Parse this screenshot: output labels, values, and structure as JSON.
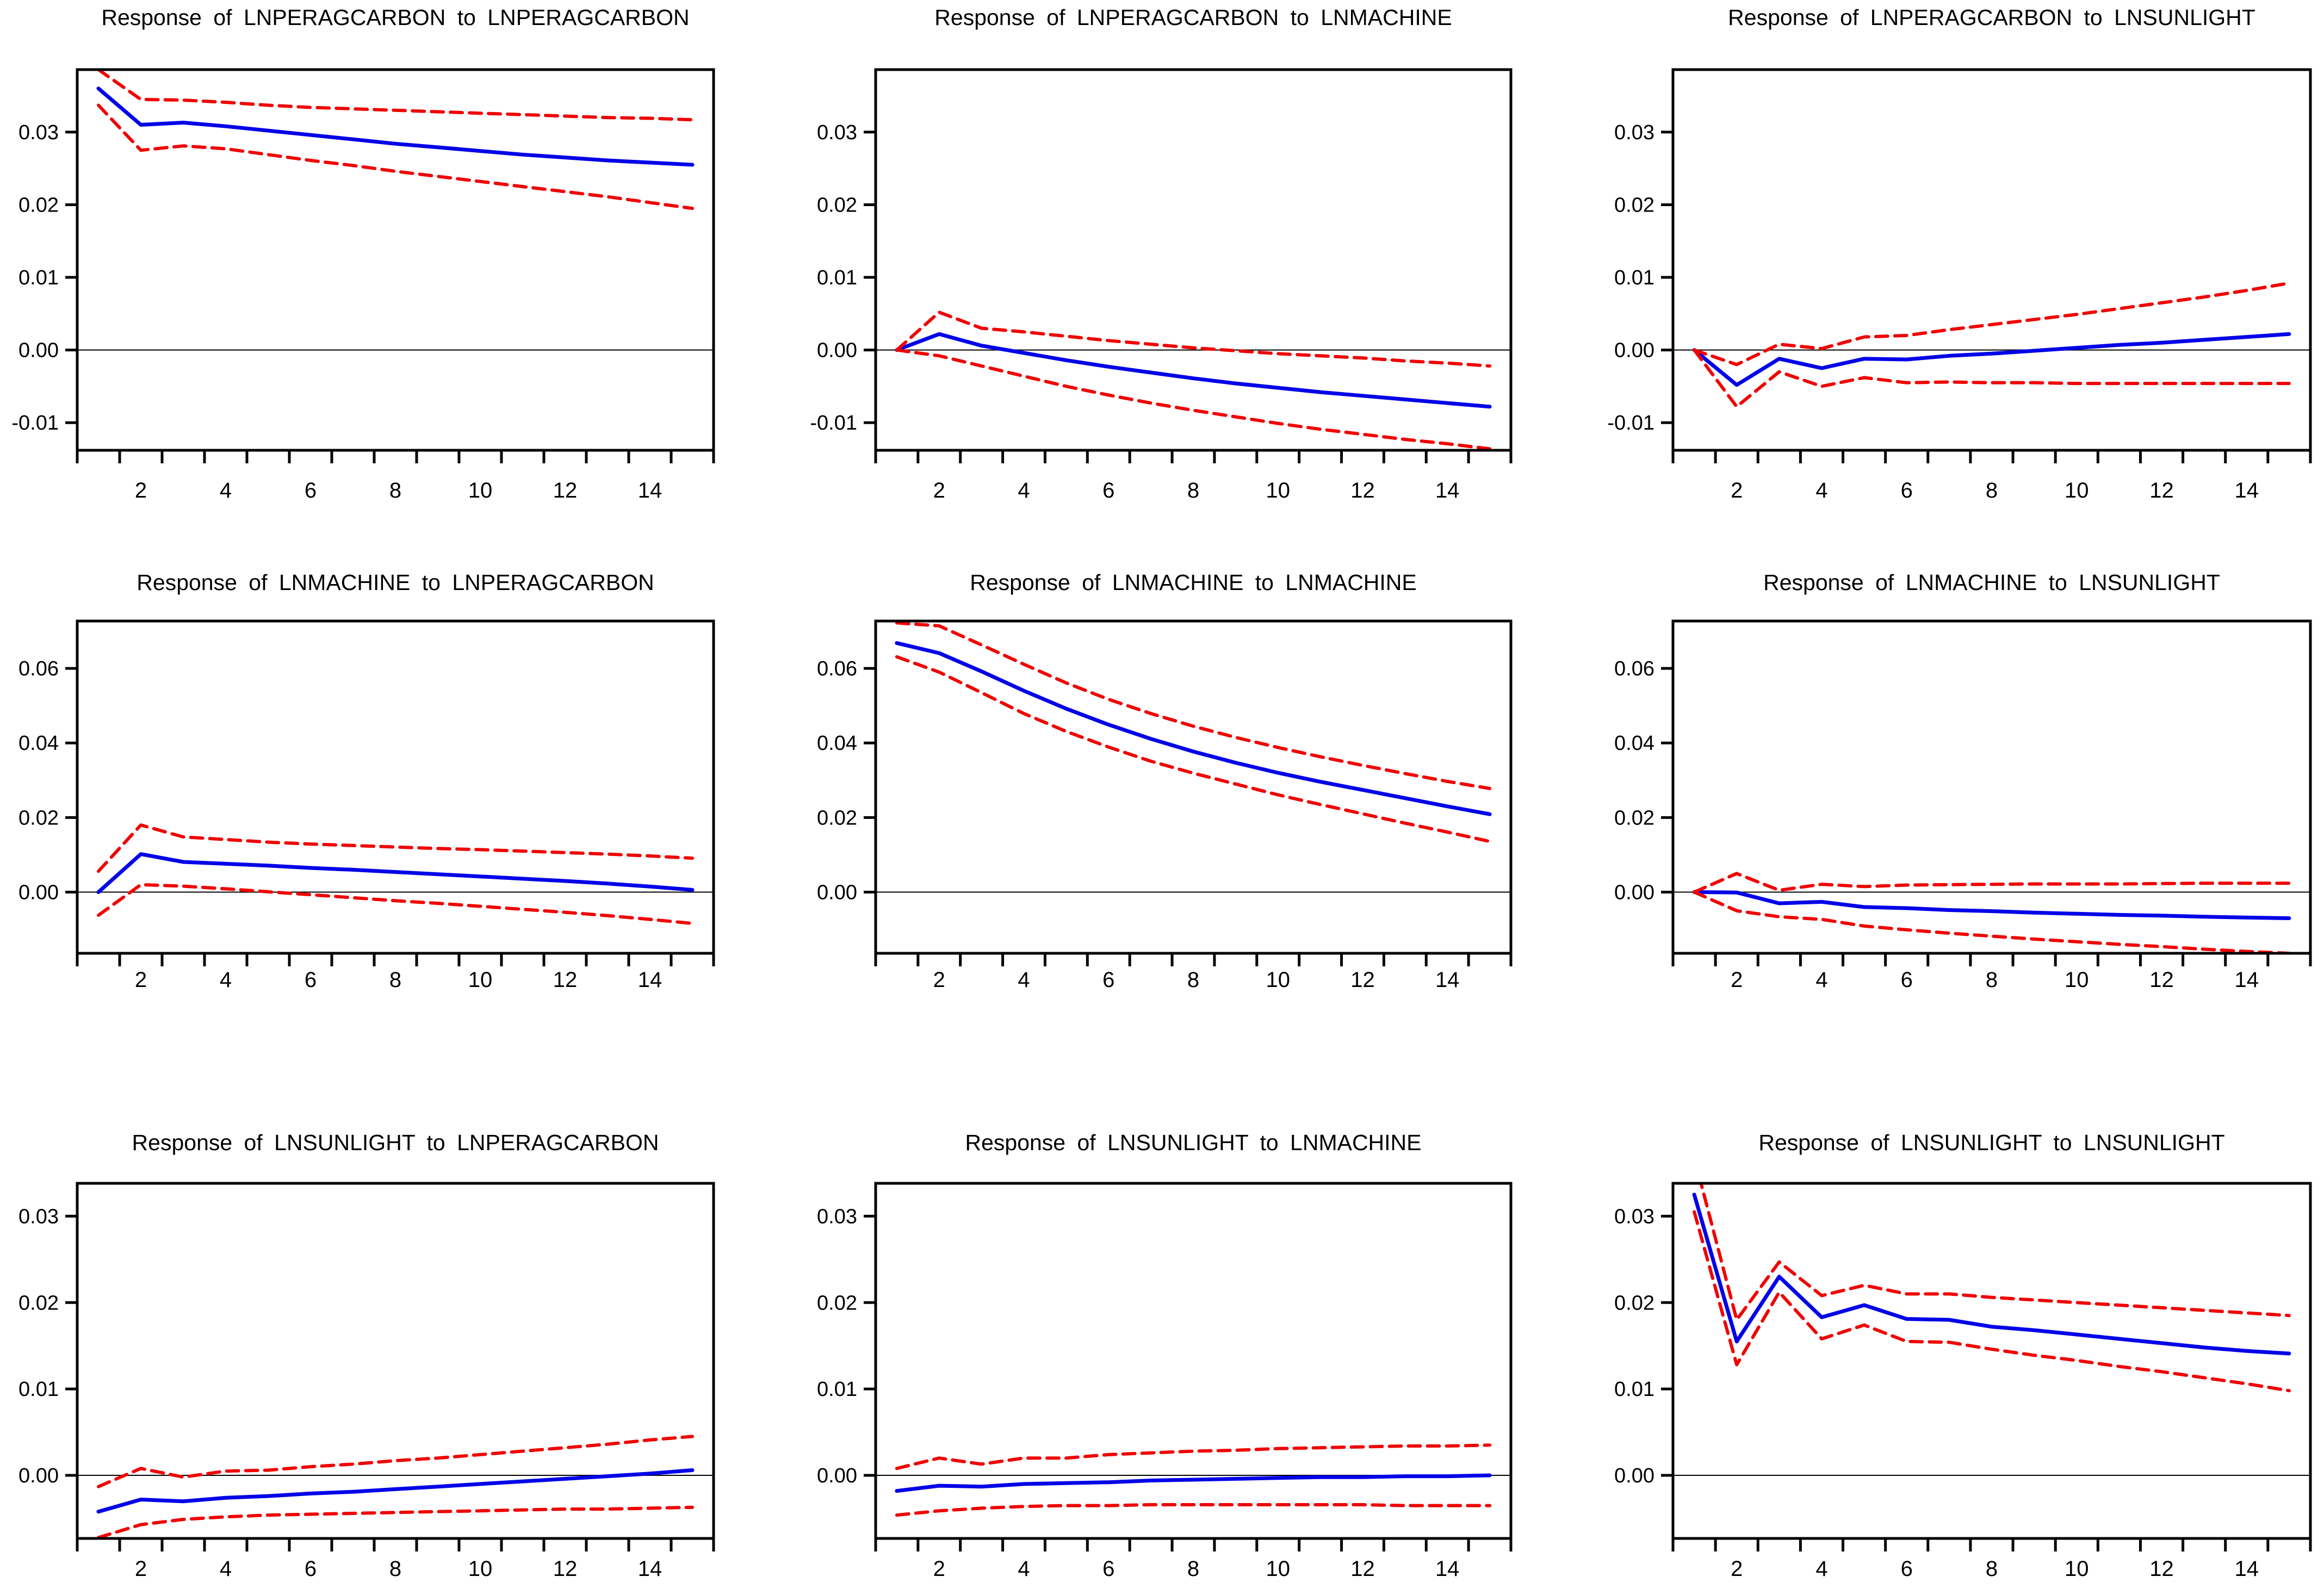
{
  "figure": {
    "kind": "VAR impulse response 3x3 grid",
    "background": "#FFFFFF",
    "rows": 3,
    "cols": 3,
    "colors": {
      "response_line": "#0202E8",
      "confidence_band": "#F00000",
      "frame": "#000000",
      "zero_line": "#000000"
    }
  },
  "chart_data": [
    {
      "type": "line",
      "row": 0,
      "col": 0,
      "title": "Response of LNPERAGCARBON to LNPERAGCARBON",
      "x": [
        1,
        2,
        3,
        4,
        5,
        6,
        7,
        8,
        9,
        10,
        11,
        12,
        13,
        14,
        15
      ],
      "x_tick_labels": [
        "2",
        "4",
        "6",
        "8",
        "10",
        "12",
        "14"
      ],
      "x_tick_positions": [
        2,
        4,
        6,
        8,
        10,
        12,
        14
      ],
      "y_ticks": [
        0.03,
        0.02,
        0.01,
        0.0,
        -0.01
      ],
      "y_tick_labels": [
        "0.03",
        "0.02",
        "0.01",
        "0.00",
        "-0.01"
      ],
      "ylim": [
        -0.0138,
        0.0386
      ],
      "zero_line": true,
      "legend": "none",
      "series": [
        {
          "name": "response",
          "style": "solid",
          "values": [
            0.036,
            0.031,
            0.0313,
            0.0308,
            0.0302,
            0.0296,
            0.029,
            0.0284,
            0.0279,
            0.0274,
            0.0269,
            0.0265,
            0.0261,
            0.0258,
            0.0255
          ]
        },
        {
          "name": "upper-band",
          "style": "dashed",
          "values": [
            0.0386,
            0.0345,
            0.0344,
            0.0341,
            0.0337,
            0.0334,
            0.0332,
            0.033,
            0.0328,
            0.0326,
            0.0324,
            0.0322,
            0.032,
            0.0319,
            0.0317
          ]
        },
        {
          "name": "lower-band",
          "style": "dashed",
          "values": [
            0.0337,
            0.0275,
            0.0281,
            0.0277,
            0.0269,
            0.0261,
            0.0254,
            0.0246,
            0.0239,
            0.0232,
            0.0225,
            0.0218,
            0.0211,
            0.0203,
            0.0195
          ]
        }
      ]
    },
    {
      "type": "line",
      "row": 0,
      "col": 1,
      "title": "Response of LNPERAGCARBON to LNMACHINE",
      "x": [
        1,
        2,
        3,
        4,
        5,
        6,
        7,
        8,
        9,
        10,
        11,
        12,
        13,
        14,
        15
      ],
      "x_tick_labels": [
        "2",
        "4",
        "6",
        "8",
        "10",
        "12",
        "14"
      ],
      "x_tick_positions": [
        2,
        4,
        6,
        8,
        10,
        12,
        14
      ],
      "y_ticks": [
        0.03,
        0.02,
        0.01,
        0.0,
        -0.01
      ],
      "y_tick_labels": [
        "0.03",
        "0.02",
        "0.01",
        "0.00",
        "-0.01"
      ],
      "ylim": [
        -0.0138,
        0.0386
      ],
      "zero_line": true,
      "legend": "none",
      "series": [
        {
          "name": "response",
          "style": "solid",
          "values": [
            0.0,
            0.0022,
            0.0006,
            -0.0004,
            -0.0014,
            -0.0023,
            -0.0031,
            -0.0039,
            -0.0046,
            -0.0052,
            -0.0058,
            -0.0063,
            -0.0068,
            -0.0073,
            -0.0078
          ]
        },
        {
          "name": "upper-band",
          "style": "dashed",
          "values": [
            0.0,
            0.0052,
            0.003,
            0.0025,
            0.0019,
            0.0013,
            0.0008,
            0.0003,
            -0.0001,
            -0.0005,
            -0.0008,
            -0.0011,
            -0.0015,
            -0.0018,
            -0.0022
          ]
        },
        {
          "name": "lower-band",
          "style": "dashed",
          "values": [
            0.0,
            -0.0008,
            -0.0022,
            -0.0036,
            -0.005,
            -0.0062,
            -0.0073,
            -0.0083,
            -0.0092,
            -0.0101,
            -0.0109,
            -0.0116,
            -0.0123,
            -0.0129,
            -0.0136
          ]
        }
      ]
    },
    {
      "type": "line",
      "row": 0,
      "col": 2,
      "title": "Response of LNPERAGCARBON to LNSUNLIGHT",
      "x": [
        1,
        2,
        3,
        4,
        5,
        6,
        7,
        8,
        9,
        10,
        11,
        12,
        13,
        14,
        15
      ],
      "x_tick_labels": [
        "2",
        "4",
        "6",
        "8",
        "10",
        "12",
        "14"
      ],
      "x_tick_positions": [
        2,
        4,
        6,
        8,
        10,
        12,
        14
      ],
      "y_ticks": [
        0.03,
        0.02,
        0.01,
        0.0,
        -0.01
      ],
      "y_tick_labels": [
        "0.03",
        "0.02",
        "0.01",
        "0.00",
        "-0.01"
      ],
      "ylim": [
        -0.0138,
        0.0386
      ],
      "zero_line": true,
      "legend": "none",
      "series": [
        {
          "name": "response",
          "style": "solid",
          "values": [
            0.0,
            -0.0048,
            -0.0012,
            -0.0025,
            -0.0012,
            -0.0013,
            -0.0008,
            -0.0005,
            -0.0001,
            0.0003,
            0.0007,
            0.001,
            0.0014,
            0.0018,
            0.0022
          ]
        },
        {
          "name": "upper-band",
          "style": "dashed",
          "values": [
            0.0,
            -0.002,
            0.0008,
            0.0002,
            0.0018,
            0.002,
            0.0028,
            0.0035,
            0.0042,
            0.0049,
            0.0057,
            0.0065,
            0.0073,
            0.0082,
            0.0092
          ]
        },
        {
          "name": "lower-band",
          "style": "dashed",
          "values": [
            0.0,
            -0.0078,
            -0.003,
            -0.005,
            -0.0038,
            -0.0045,
            -0.0044,
            -0.0045,
            -0.0045,
            -0.0046,
            -0.0046,
            -0.0046,
            -0.0046,
            -0.0046,
            -0.0046
          ]
        }
      ]
    },
    {
      "type": "line",
      "row": 1,
      "col": 0,
      "title": "Response of LNMACHINE to LNPERAGCARBON",
      "x": [
        1,
        2,
        3,
        4,
        5,
        6,
        7,
        8,
        9,
        10,
        11,
        12,
        13,
        14,
        15
      ],
      "x_tick_labels": [
        "2",
        "4",
        "6",
        "8",
        "10",
        "12",
        "14"
      ],
      "x_tick_positions": [
        2,
        4,
        6,
        8,
        10,
        12,
        14
      ],
      "y_ticks": [
        0.06,
        0.04,
        0.02,
        0.0
      ],
      "y_tick_labels": [
        "0.06",
        "0.04",
        "0.02",
        "0.00"
      ],
      "ylim": [
        -0.0164,
        0.0727
      ],
      "zero_line": true,
      "legend": "none",
      "series": [
        {
          "name": "response",
          "style": "solid",
          "values": [
            0.0,
            0.0102,
            0.0081,
            0.0076,
            0.0071,
            0.0065,
            0.006,
            0.0054,
            0.0048,
            0.0042,
            0.0036,
            0.003,
            0.0023,
            0.0015,
            0.0006
          ]
        },
        {
          "name": "upper-band",
          "style": "dashed",
          "values": [
            0.0056,
            0.018,
            0.0148,
            0.0141,
            0.0134,
            0.0129,
            0.0125,
            0.0121,
            0.0117,
            0.0114,
            0.011,
            0.0106,
            0.0102,
            0.0097,
            0.0091
          ]
        },
        {
          "name": "lower-band",
          "style": "dashed",
          "values": [
            -0.0062,
            0.002,
            0.0016,
            0.0009,
            0.0001,
            -0.0007,
            -0.0015,
            -0.0023,
            -0.003,
            -0.0038,
            -0.0046,
            -0.0054,
            -0.0063,
            -0.0073,
            -0.0084
          ]
        }
      ]
    },
    {
      "type": "line",
      "row": 1,
      "col": 1,
      "title": "Response of LNMACHINE to LNMACHINE",
      "x": [
        1,
        2,
        3,
        4,
        5,
        6,
        7,
        8,
        9,
        10,
        11,
        12,
        13,
        14,
        15
      ],
      "x_tick_labels": [
        "2",
        "4",
        "6",
        "8",
        "10",
        "12",
        "14"
      ],
      "x_tick_positions": [
        2,
        4,
        6,
        8,
        10,
        12,
        14
      ],
      "y_ticks": [
        0.06,
        0.04,
        0.02,
        0.0
      ],
      "y_tick_labels": [
        "0.06",
        "0.04",
        "0.02",
        "0.00"
      ],
      "ylim": [
        -0.0164,
        0.0727
      ],
      "zero_line": true,
      "legend": "none",
      "series": [
        {
          "name": "response",
          "style": "solid",
          "values": [
            0.0668,
            0.0641,
            0.0592,
            0.054,
            0.0492,
            0.0449,
            0.0411,
            0.0377,
            0.0347,
            0.032,
            0.0296,
            0.0274,
            0.0252,
            0.023,
            0.0209
          ]
        },
        {
          "name": "upper-band",
          "style": "dashed",
          "values": [
            0.0722,
            0.0714,
            0.0663,
            0.0611,
            0.0561,
            0.0517,
            0.0479,
            0.0445,
            0.0415,
            0.0388,
            0.0363,
            0.034,
            0.0318,
            0.0297,
            0.0278
          ]
        },
        {
          "name": "lower-band",
          "style": "dashed",
          "values": [
            0.0631,
            0.059,
            0.0535,
            0.0479,
            0.0431,
            0.0389,
            0.0351,
            0.0319,
            0.029,
            0.0261,
            0.0235,
            0.021,
            0.0185,
            0.0161,
            0.0136
          ]
        }
      ]
    },
    {
      "type": "line",
      "row": 1,
      "col": 2,
      "title": "Response of LNMACHINE to LNSUNLIGHT",
      "x": [
        1,
        2,
        3,
        4,
        5,
        6,
        7,
        8,
        9,
        10,
        11,
        12,
        13,
        14,
        15
      ],
      "x_tick_labels": [
        "2",
        "4",
        "6",
        "8",
        "10",
        "12",
        "14"
      ],
      "x_tick_positions": [
        2,
        4,
        6,
        8,
        10,
        12,
        14
      ],
      "y_ticks": [
        0.06,
        0.04,
        0.02,
        0.0
      ],
      "y_tick_labels": [
        "0.06",
        "0.04",
        "0.02",
        "0.00"
      ],
      "ylim": [
        -0.0164,
        0.0727
      ],
      "zero_line": true,
      "legend": "none",
      "series": [
        {
          "name": "response",
          "style": "solid",
          "values": [
            0.0,
            -0.0001,
            -0.003,
            -0.0026,
            -0.004,
            -0.0043,
            -0.0048,
            -0.0051,
            -0.0055,
            -0.0058,
            -0.0061,
            -0.0063,
            -0.0066,
            -0.0068,
            -0.007
          ]
        },
        {
          "name": "upper-band",
          "style": "dashed",
          "values": [
            0.0,
            0.005,
            0.0005,
            0.0021,
            0.0015,
            0.0019,
            0.002,
            0.0021,
            0.0022,
            0.0022,
            0.0022,
            0.0023,
            0.0024,
            0.0024,
            0.0024
          ]
        },
        {
          "name": "lower-band",
          "style": "dashed",
          "values": [
            0.0,
            -0.005,
            -0.0066,
            -0.0073,
            -0.0091,
            -0.0101,
            -0.011,
            -0.0118,
            -0.0126,
            -0.0133,
            -0.014,
            -0.0146,
            -0.0153,
            -0.0159,
            -0.0164
          ]
        }
      ]
    },
    {
      "type": "line",
      "row": 2,
      "col": 0,
      "title": "Response of LNSUNLIGHT to LNPERAGCARBON",
      "x": [
        1,
        2,
        3,
        4,
        5,
        6,
        7,
        8,
        9,
        10,
        11,
        12,
        13,
        14,
        15
      ],
      "x_tick_labels": [
        "2",
        "4",
        "6",
        "8",
        "10",
        "12",
        "14"
      ],
      "x_tick_positions": [
        2,
        4,
        6,
        8,
        10,
        12,
        14
      ],
      "y_ticks": [
        0.03,
        0.02,
        0.01,
        0.0
      ],
      "y_tick_labels": [
        "0.03",
        "0.02",
        "0.01",
        "0.00"
      ],
      "ylim": [
        -0.0073,
        0.0338
      ],
      "zero_line": true,
      "legend": "none",
      "series": [
        {
          "name": "response",
          "style": "solid",
          "values": [
            -0.0042,
            -0.0028,
            -0.003,
            -0.0026,
            -0.0024,
            -0.0021,
            -0.0019,
            -0.0016,
            -0.0013,
            -0.001,
            -0.0007,
            -0.0004,
            -0.0001,
            0.0002,
            0.0006
          ]
        },
        {
          "name": "upper-band",
          "style": "dashed",
          "values": [
            -0.0013,
            0.0008,
            -0.0002,
            0.0005,
            0.0006,
            0.001,
            0.0013,
            0.0017,
            0.002,
            0.0024,
            0.0028,
            0.0032,
            0.0036,
            0.0041,
            0.0045
          ]
        },
        {
          "name": "lower-band",
          "style": "dashed",
          "values": [
            -0.0072,
            -0.0057,
            -0.0051,
            -0.0048,
            -0.0046,
            -0.0045,
            -0.0044,
            -0.0043,
            -0.0042,
            -0.0041,
            -0.004,
            -0.0039,
            -0.0039,
            -0.0038,
            -0.0037
          ]
        }
      ]
    },
    {
      "type": "line",
      "row": 2,
      "col": 1,
      "title": "Response of LNSUNLIGHT to LNMACHINE",
      "x": [
        1,
        2,
        3,
        4,
        5,
        6,
        7,
        8,
        9,
        10,
        11,
        12,
        13,
        14,
        15
      ],
      "x_tick_labels": [
        "2",
        "4",
        "6",
        "8",
        "10",
        "12",
        "14"
      ],
      "x_tick_positions": [
        2,
        4,
        6,
        8,
        10,
        12,
        14
      ],
      "y_ticks": [
        0.03,
        0.02,
        0.01,
        0.0
      ],
      "y_tick_labels": [
        "0.03",
        "0.02",
        "0.01",
        "0.00"
      ],
      "ylim": [
        -0.0073,
        0.0338
      ],
      "zero_line": true,
      "legend": "none",
      "series": [
        {
          "name": "response",
          "style": "solid",
          "values": [
            -0.0018,
            -0.0012,
            -0.0013,
            -0.001,
            -0.0009,
            -0.0008,
            -0.0006,
            -0.0005,
            -0.0004,
            -0.0003,
            -0.0002,
            -0.0002,
            -0.0001,
            -0.0001,
            0.0
          ]
        },
        {
          "name": "upper-band",
          "style": "dashed",
          "values": [
            0.0008,
            0.002,
            0.0013,
            0.002,
            0.002,
            0.0024,
            0.0026,
            0.0028,
            0.0029,
            0.0031,
            0.0032,
            0.0033,
            0.0034,
            0.0034,
            0.0035
          ]
        },
        {
          "name": "lower-band",
          "style": "dashed",
          "values": [
            -0.0046,
            -0.0041,
            -0.0038,
            -0.0036,
            -0.0035,
            -0.0035,
            -0.0034,
            -0.0034,
            -0.0034,
            -0.0034,
            -0.0034,
            -0.0034,
            -0.0035,
            -0.0035,
            -0.0035
          ]
        }
      ]
    },
    {
      "type": "line",
      "row": 2,
      "col": 2,
      "title": "Response of LNSUNLIGHT to LNSUNLIGHT",
      "x": [
        1,
        2,
        3,
        4,
        5,
        6,
        7,
        8,
        9,
        10,
        11,
        12,
        13,
        14,
        15
      ],
      "x_tick_labels": [
        "2",
        "4",
        "6",
        "8",
        "10",
        "12",
        "14"
      ],
      "x_tick_positions": [
        2,
        4,
        6,
        8,
        10,
        12,
        14
      ],
      "y_ticks": [
        0.03,
        0.02,
        0.01,
        0.0
      ],
      "y_tick_labels": [
        "0.03",
        "0.02",
        "0.01",
        "0.00"
      ],
      "ylim": [
        -0.0073,
        0.0338
      ],
      "zero_line": true,
      "legend": "none",
      "series": [
        {
          "name": "response",
          "style": "solid",
          "values": [
            0.0325,
            0.0155,
            0.023,
            0.0183,
            0.0197,
            0.0181,
            0.018,
            0.0172,
            0.0168,
            0.0163,
            0.0158,
            0.0153,
            0.0148,
            0.0144,
            0.0141
          ]
        },
        {
          "name": "upper-band",
          "style": "dashed",
          "values": [
            0.0368,
            0.018,
            0.0247,
            0.0208,
            0.022,
            0.021,
            0.021,
            0.0206,
            0.0203,
            0.02,
            0.0197,
            0.0194,
            0.0191,
            0.0188,
            0.0185
          ]
        },
        {
          "name": "lower-band",
          "style": "dashed",
          "values": [
            0.0305,
            0.0128,
            0.0212,
            0.0158,
            0.0174,
            0.0155,
            0.0154,
            0.0146,
            0.0139,
            0.0133,
            0.0126,
            0.012,
            0.0113,
            0.0106,
            0.0098
          ]
        }
      ]
    }
  ]
}
